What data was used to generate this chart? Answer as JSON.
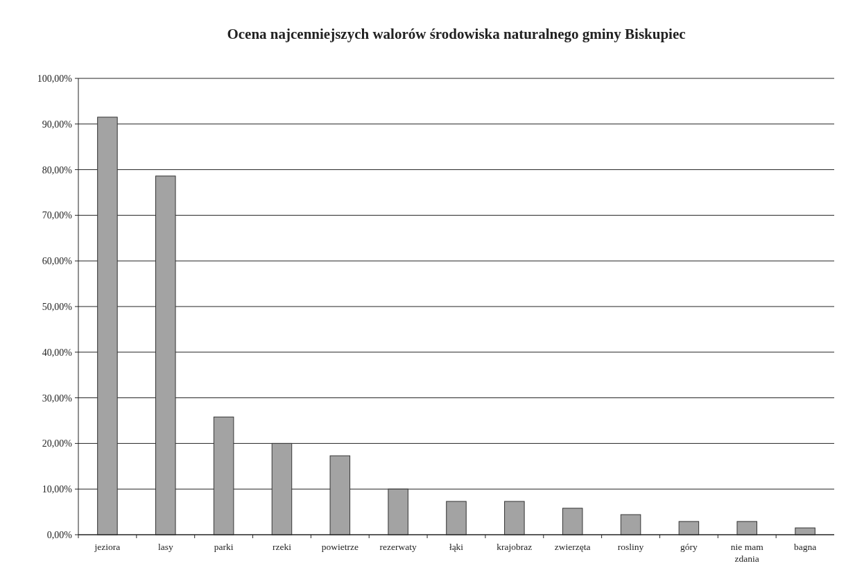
{
  "chart_data": {
    "type": "bar",
    "title": "Ocena najcenniejszych walorów środowiska naturalnego gminy Biskupiec",
    "categories": [
      "jeziora",
      "lasy",
      "parki",
      "rzeki",
      "powietrze",
      "rezerwaty",
      "łąki",
      "krajobraz",
      "zwierzęta",
      "rosliny",
      "góry",
      "nie mam zdania",
      "bagna"
    ],
    "values": [
      91.5,
      78.6,
      25.8,
      20,
      17.3,
      10,
      7.3,
      7.3,
      5.8,
      4.4,
      2.9,
      2.9,
      1.5
    ],
    "color": "#a3a3a3",
    "ylim": [
      0,
      100
    ],
    "yticks": [
      {
        "value": 0,
        "label": "0,00%"
      },
      {
        "value": 10,
        "label": "10,00%"
      },
      {
        "value": 20,
        "label": "20,00%"
      },
      {
        "value": 30,
        "label": "30,00%"
      },
      {
        "value": 40,
        "label": "40,00%"
      },
      {
        "value": 50,
        "label": "50,00%"
      },
      {
        "value": 60,
        "label": "60,00%"
      },
      {
        "value": 70,
        "label": "70,00%"
      },
      {
        "value": 80,
        "label": "80,00%"
      },
      {
        "value": 90,
        "label": "90,00%"
      },
      {
        "value": 100,
        "label": "100,00%"
      }
    ],
    "grid": "y"
  }
}
